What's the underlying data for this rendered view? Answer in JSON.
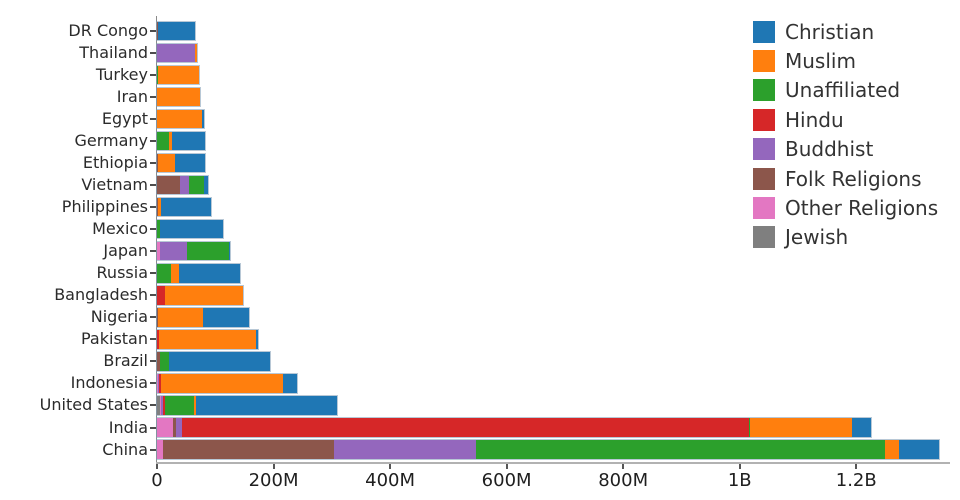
{
  "chart_data": {
    "type": "bar",
    "orientation": "horizontal",
    "stacked": true,
    "title": "",
    "xlabel": "",
    "ylabel": "",
    "unit": "millions of people",
    "grid": false,
    "legend_position": "top-right",
    "xlim": [
      0,
      1360
    ],
    "x_ticks": [
      {
        "value": 0,
        "label": "0"
      },
      {
        "value": 200,
        "label": "200M"
      },
      {
        "value": 400,
        "label": "400M"
      },
      {
        "value": 600,
        "label": "600M"
      },
      {
        "value": 800,
        "label": "800M"
      },
      {
        "value": 1000,
        "label": "1B"
      },
      {
        "value": 1200,
        "label": "1.2B"
      }
    ],
    "categories": [
      "DR Congo",
      "Thailand",
      "Turkey",
      "Iran",
      "Egypt",
      "Germany",
      "Ethiopia",
      "Vietnam",
      "Philippines",
      "Mexico",
      "Japan",
      "Russia",
      "Bangladesh",
      "Nigeria",
      "Pakistan",
      "Brazil",
      "Indonesia",
      "United States",
      "India",
      "China"
    ],
    "stack_order_left_to_right": [
      "Jewish",
      "Other Religions",
      "Folk Religions",
      "Buddhist",
      "Hindu",
      "Unaffiliated",
      "Muslim",
      "Christian"
    ],
    "series": [
      {
        "name": "Christian",
        "color": "#1f77b4",
        "values": [
          63.2,
          0.62,
          0.3,
          0.12,
          4.14,
          56.5,
          52.1,
          7.2,
          86.4,
          107.8,
          2.0,
          104.8,
          0.3,
          78.1,
          2.78,
          173.3,
          23.7,
          243.1,
          31.13,
          68.4
        ]
      },
      {
        "name": "Muslim",
        "color": "#ff7f0e",
        "values": [
          0.97,
          3.8,
          71.3,
          73.6,
          77.0,
          4.76,
          28.7,
          0.18,
          5.13,
          0.01,
          0.25,
          14.3,
          133.5,
          77.3,
          167.3,
          0.07,
          209.1,
          2.77,
          176.2,
          24.69
        ]
      },
      {
        "name": "Unaffiliated",
        "color": "#2ca02c",
        "values": [
          0.3,
          0.21,
          0.87,
          0.07,
          0.02,
          20.35,
          0.1,
          26.0,
          0.09,
          5.3,
          72.1,
          23.2,
          0.07,
          0.63,
          0.03,
          15.4,
          0.24,
          50.98,
          0.87,
          700.68
        ]
      },
      {
        "name": "Hindu",
        "color": "#d62728",
        "values": [
          0,
          0.07,
          0,
          0,
          0,
          0.08,
          0,
          0.04,
          0,
          0,
          0.03,
          0.05,
          13.53,
          0,
          3.33,
          0,
          4.05,
          1.79,
          973.75,
          0.02
        ]
      },
      {
        "name": "Buddhist",
        "color": "#9467bd",
        "values": [
          0,
          64.4,
          0.03,
          0,
          0,
          0.25,
          0,
          14.4,
          0.04,
          0.01,
          45.8,
          0.14,
          0.74,
          0,
          0.02,
          0.19,
          1.72,
          3.57,
          9.25,
          244.13
        ]
      },
      {
        "name": "Folk Religions",
        "color": "#8c564b",
        "values": [
          1.19,
          0.07,
          0.06,
          0.03,
          0,
          0.08,
          2.16,
          39.8,
          1.4,
          0.1,
          0.51,
          0.29,
          0.59,
          2.22,
          0.1,
          5.46,
          0.72,
          0.63,
          5.84,
          294.32
        ]
      },
      {
        "name": "Other Religions",
        "color": "#e377c2",
        "values": [
          0.26,
          0.01,
          0.15,
          0.1,
          0.02,
          0.08,
          0.1,
          0.35,
          0.19,
          0.06,
          5.95,
          0.01,
          0.01,
          0.16,
          0.03,
          0.58,
          0.96,
          1.86,
          27.56,
          9.57
        ]
      },
      {
        "name": "Jewish",
        "color": "#7f7f7f",
        "values": [
          0,
          0,
          0.02,
          0.01,
          0,
          0.25,
          0,
          0,
          0,
          0.05,
          0.01,
          0.29,
          0,
          0,
          0,
          0.19,
          0,
          5.69,
          0.01,
          0.02
        ]
      }
    ],
    "legend": [
      {
        "label": "Christian",
        "color": "#1f77b4"
      },
      {
        "label": "Muslim",
        "color": "#ff7f0e"
      },
      {
        "label": "Unaffiliated",
        "color": "#2ca02c"
      },
      {
        "label": "Hindu",
        "color": "#d62728"
      },
      {
        "label": "Buddhist",
        "color": "#9467bd"
      },
      {
        "label": "Folk Religions",
        "color": "#8c564b"
      },
      {
        "label": "Other Religions",
        "color": "#e377c2"
      },
      {
        "label": "Jewish",
        "color": "#7f7f7f"
      }
    ]
  }
}
